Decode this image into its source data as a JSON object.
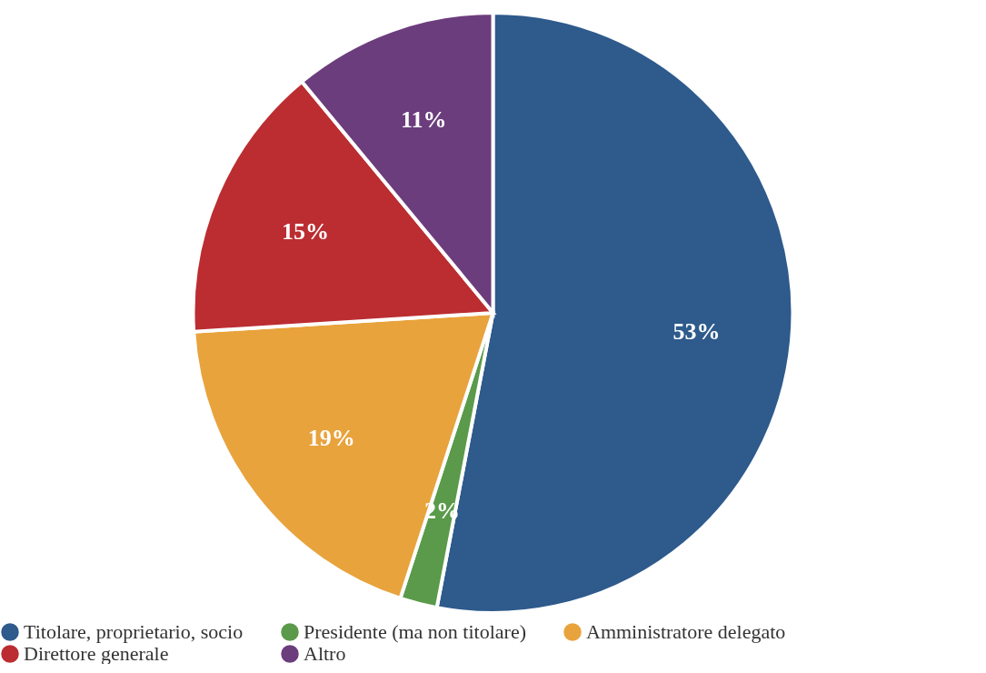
{
  "chart_data": {
    "type": "pie",
    "categories": [
      "Titolare, proprietario, socio",
      "Presidente (ma non titolare)",
      "Amministratore delegato",
      "Direttore generale",
      "Altro"
    ],
    "values": [
      53,
      2,
      19,
      15,
      11
    ],
    "value_labels": [
      "53%",
      "2%",
      "19%",
      "15%",
      "11%"
    ],
    "colors": [
      "#2e5a8c",
      "#5a9a4a",
      "#e8a33d",
      "#bb2d31",
      "#6c3d7d"
    ],
    "legend": "bottom"
  }
}
